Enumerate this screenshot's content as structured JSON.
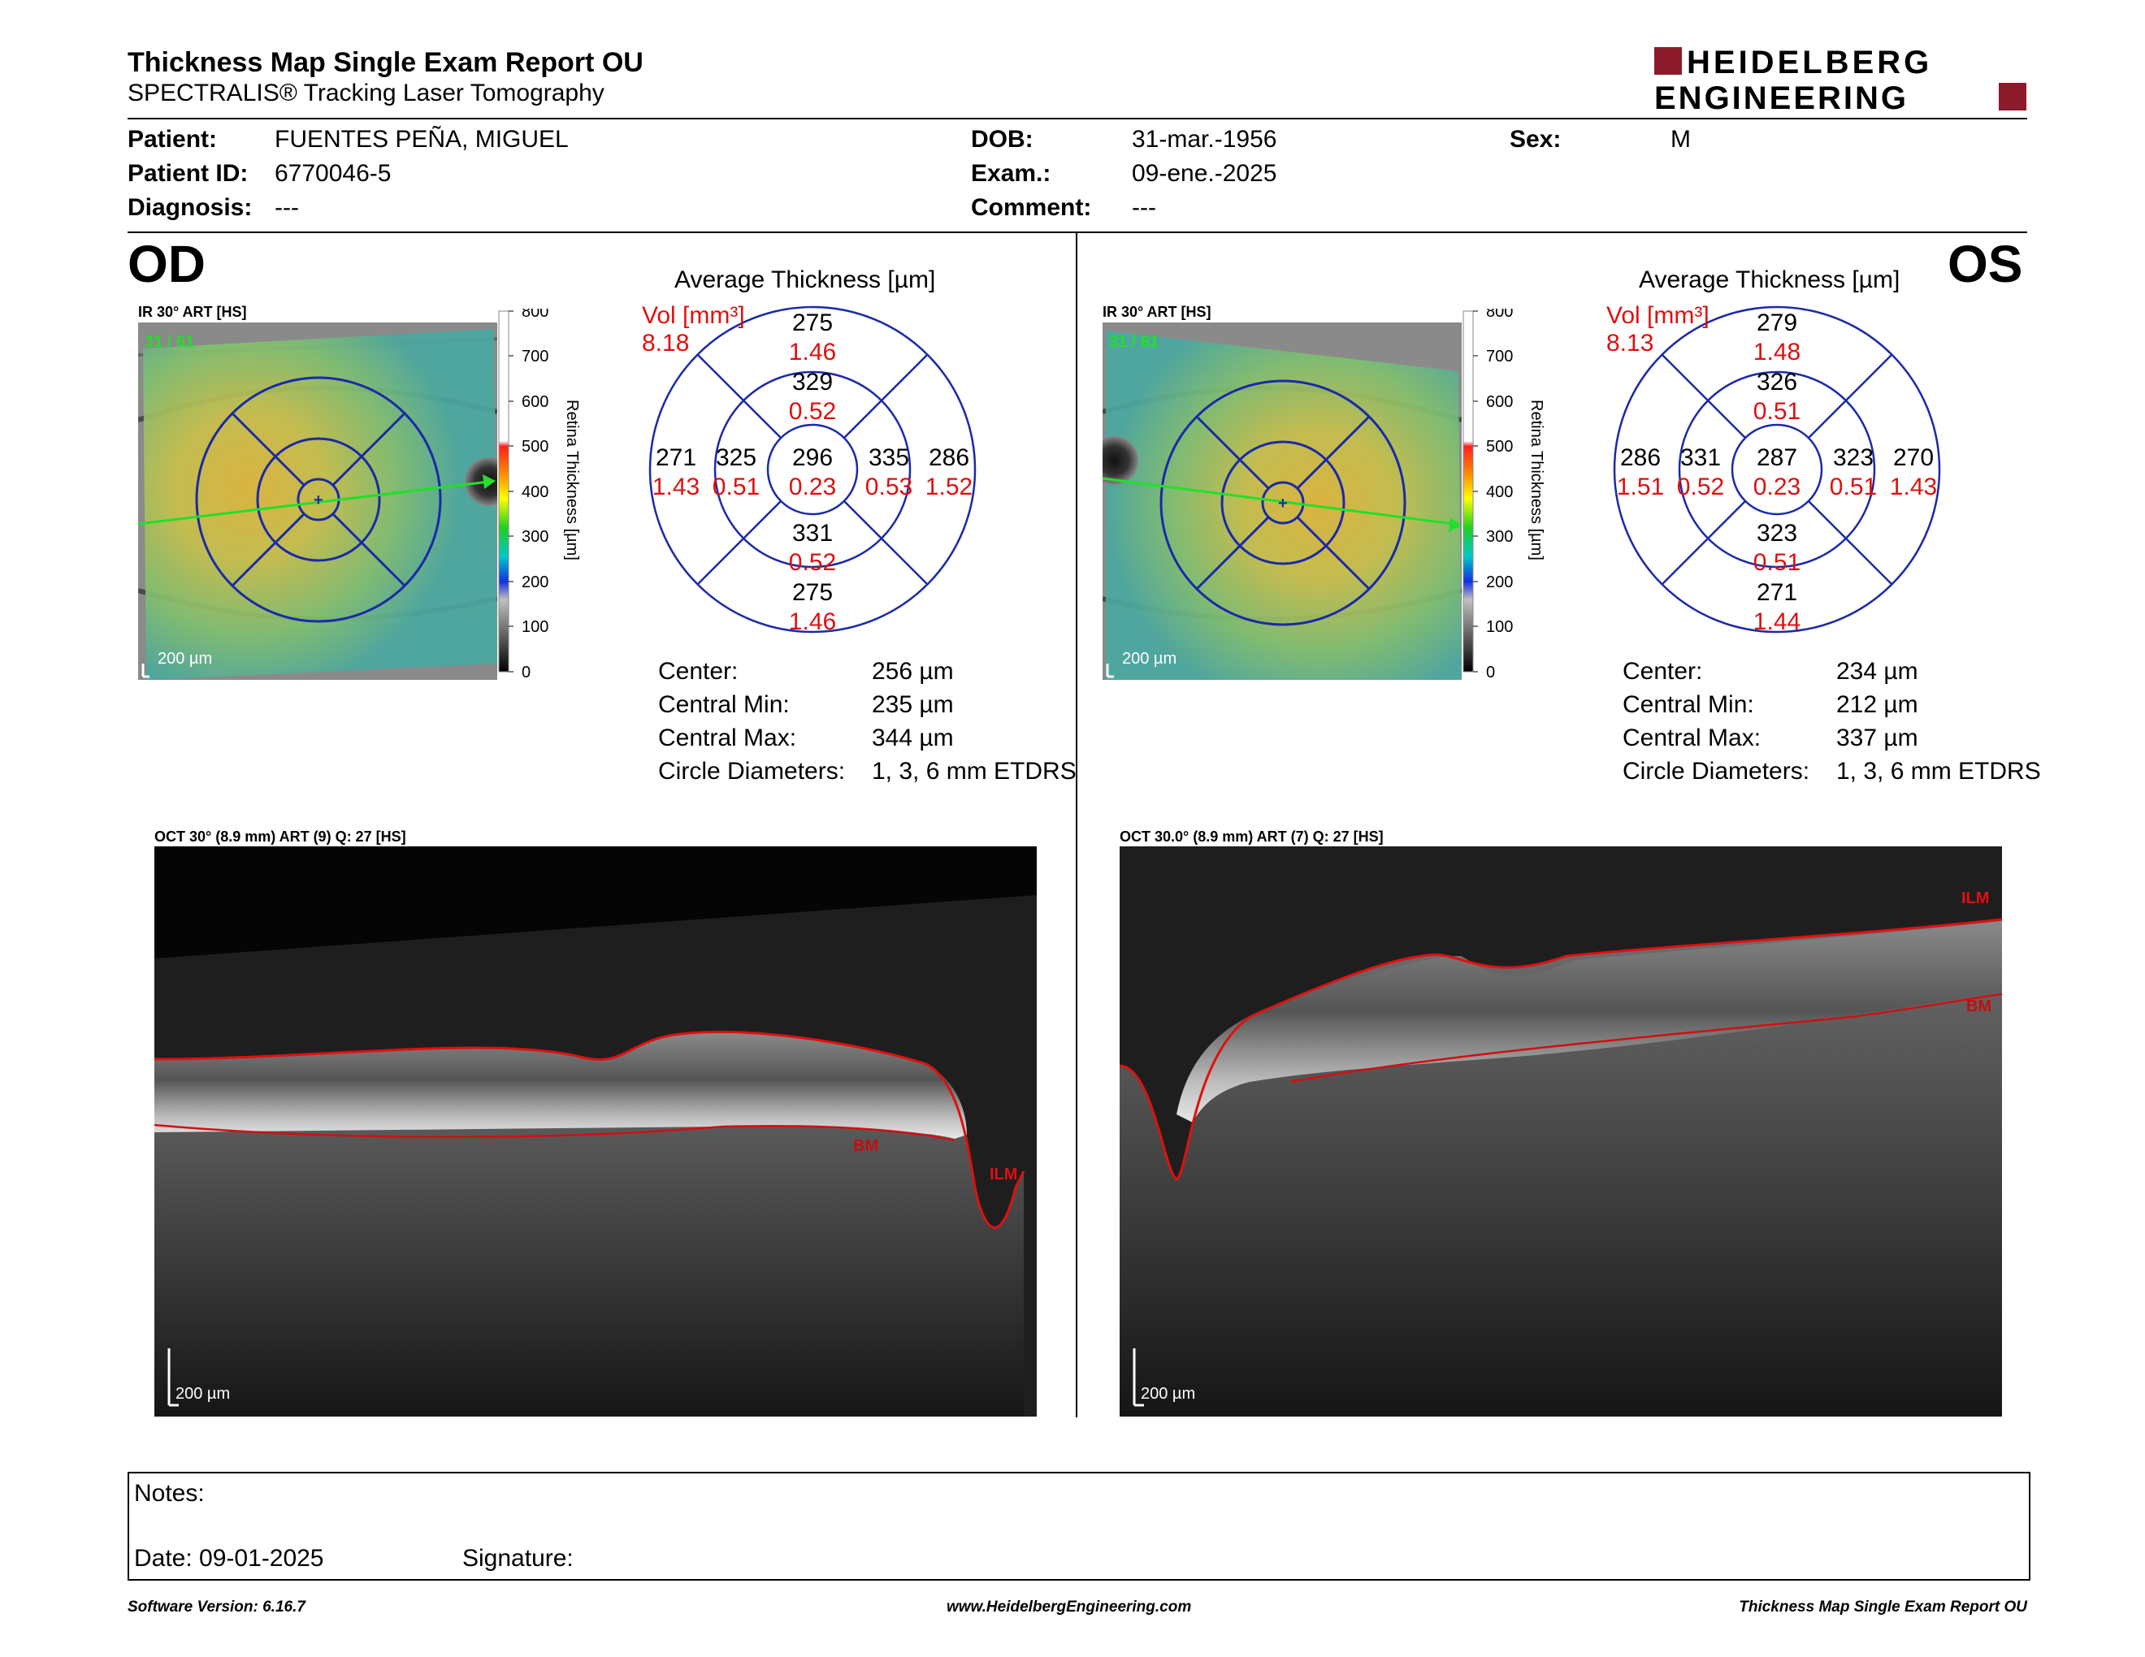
{
  "header": {
    "title": "Thickness Map Single Exam Report OU",
    "subtitle": "SPECTRALIS® Tracking Laser Tomography",
    "logo_line1": "HEIDELBERG",
    "logo_line2": "ENGINEERING",
    "logo_color": "#8b1a2b"
  },
  "patient": {
    "patient_label": "Patient:",
    "patient_value": "FUENTES PEÑA, MIGUEL",
    "id_label": "Patient ID:",
    "id_value": "6770046-5",
    "diagnosis_label": "Diagnosis:",
    "diagnosis_value": "---",
    "dob_label": "DOB:",
    "dob_value": "31-mar.-1956",
    "exam_label": "Exam.:",
    "exam_value": "09-ene.-2025",
    "comment_label": "Comment:",
    "comment_value": "---",
    "sex_label": "Sex:",
    "sex_value": "M"
  },
  "colorbar": {
    "ticks": [
      "800",
      "700",
      "600",
      "500",
      "400",
      "300",
      "200",
      "100",
      "0"
    ],
    "label": "Retina Thickness [µm]"
  },
  "od": {
    "eye": "OD",
    "ir_caption": "IR 30° ART [HS]",
    "counter": "31 / 61",
    "scale": "200 µm",
    "avg_title": "Average Thickness [µm]",
    "vol_label": "Vol [mm³]",
    "vol_value": "8.18",
    "etdrs": {
      "center": {
        "t": "296",
        "v": "0.23"
      },
      "inner_top": {
        "t": "329",
        "v": "0.52"
      },
      "inner_bottom": {
        "t": "331",
        "v": "0.52"
      },
      "inner_left": {
        "t": "325",
        "v": "0.51"
      },
      "inner_right": {
        "t": "335",
        "v": "0.53"
      },
      "outer_top": {
        "t": "275",
        "v": "1.46"
      },
      "outer_bottom": {
        "t": "275",
        "v": "1.46"
      },
      "outer_left": {
        "t": "271",
        "v": "1.43"
      },
      "outer_right": {
        "t": "286",
        "v": "1.52"
      }
    },
    "stats": [
      {
        "label": "Center:",
        "value": "256 µm"
      },
      {
        "label": "Central Min:",
        "value": "235 µm"
      },
      {
        "label": "Central Max:",
        "value": "344 µm"
      },
      {
        "label": "Circle Diameters:",
        "value": "1, 3, 6 mm ETDRS"
      }
    ],
    "oct_caption": "OCT 30° (8.9 mm) ART (9) Q: 27 [HS]",
    "oct_scale": "200 µm",
    "ilm": "ILM",
    "bm": "BM"
  },
  "os": {
    "eye": "OS",
    "ir_caption": "IR 30° ART [HS]",
    "counter": "31 / 61",
    "scale": "200 µm",
    "avg_title": "Average Thickness [µm]",
    "vol_label": "Vol [mm³]",
    "vol_value": "8.13",
    "etdrs": {
      "center": {
        "t": "287",
        "v": "0.23"
      },
      "inner_top": {
        "t": "326",
        "v": "0.51"
      },
      "inner_bottom": {
        "t": "323",
        "v": "0.51"
      },
      "inner_left": {
        "t": "331",
        "v": "0.52"
      },
      "inner_right": {
        "t": "323",
        "v": "0.51"
      },
      "outer_top": {
        "t": "279",
        "v": "1.48"
      },
      "outer_bottom": {
        "t": "271",
        "v": "1.44"
      },
      "outer_left": {
        "t": "286",
        "v": "1.51"
      },
      "outer_right": {
        "t": "270",
        "v": "1.43"
      }
    },
    "stats": [
      {
        "label": "Center:",
        "value": "234 µm"
      },
      {
        "label": "Central Min:",
        "value": "212 µm"
      },
      {
        "label": "Central Max:",
        "value": "337 µm"
      },
      {
        "label": "Circle Diameters:",
        "value": "1, 3, 6 mm ETDRS"
      }
    ],
    "oct_caption": "OCT 30.0° (8.9 mm) ART (7) Q: 27 [HS]",
    "oct_scale": "200 µm",
    "ilm": "ILM",
    "bm": "BM"
  },
  "notes": {
    "notes_label": "Notes:",
    "date_label": "Date: 09-01-2025",
    "signature_label": "Signature:"
  },
  "footer": {
    "software": "Software Version: 6.16.7",
    "url": "www.HeidelbergEngineering.com",
    "report": "Thickness Map Single Exam Report OU"
  }
}
